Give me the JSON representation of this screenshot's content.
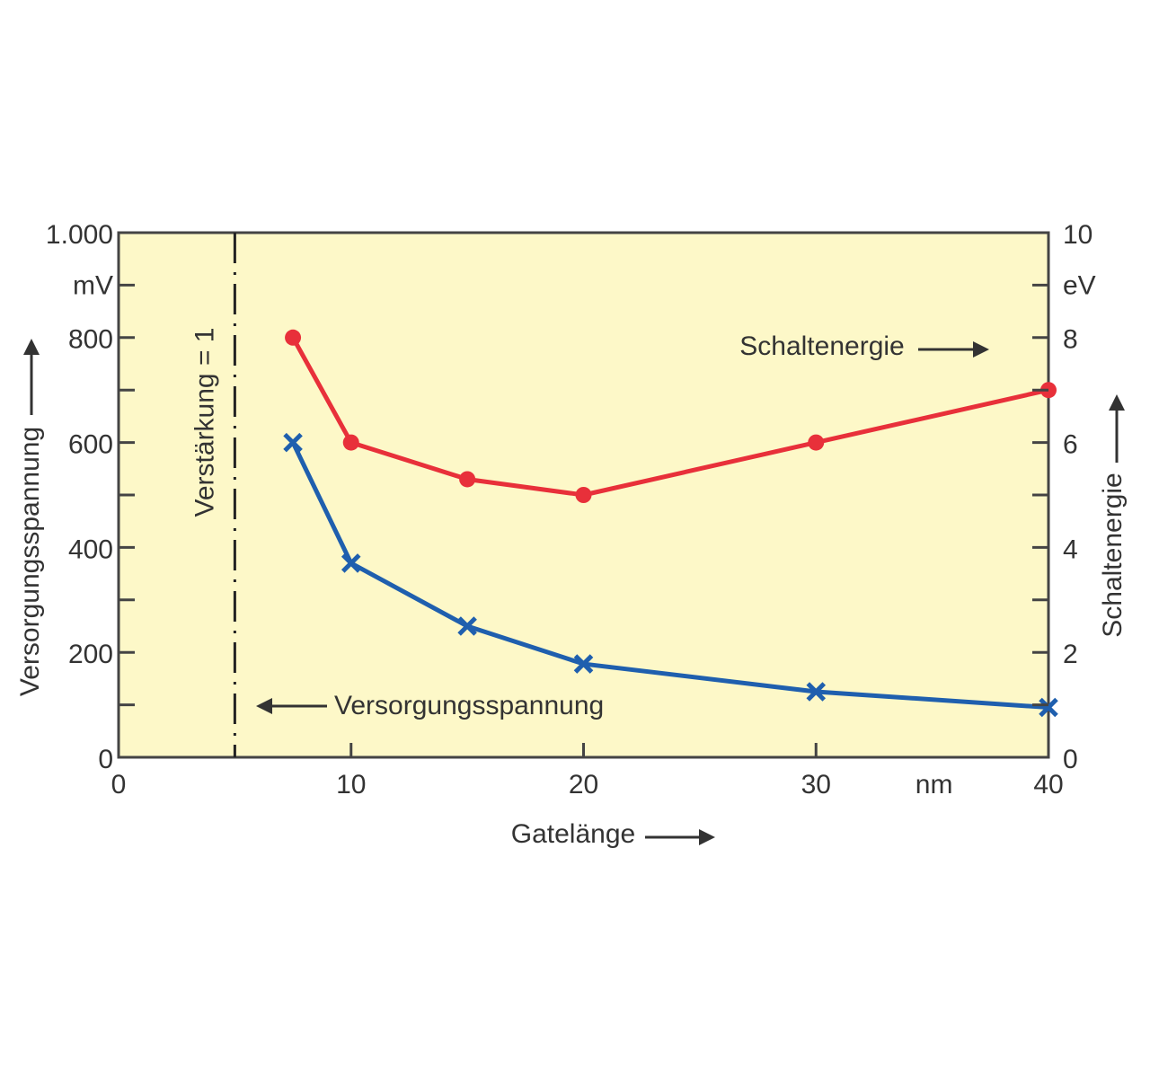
{
  "chart_data": {
    "type": "line",
    "x_label": "Gatelänge",
    "y_label": "Versorgungsspannung",
    "y2_label": "Schaltenergie",
    "x_unit": "nm",
    "y_unit": "mV",
    "y2_unit": "eV",
    "xlim": [
      0,
      40
    ],
    "xticks": [
      0,
      10,
      20,
      30,
      40
    ],
    "ylim": [
      0,
      1000
    ],
    "yticks": [
      0,
      200,
      400,
      600,
      800,
      {
        "value": 1000,
        "label": "1.000"
      }
    ],
    "y_minor_ticks": [
      100,
      300,
      500,
      700,
      900
    ],
    "y2lim": [
      0,
      10
    ],
    "y2ticks": [
      0,
      2,
      4,
      6,
      8,
      10
    ],
    "y2_minor_ticks": [
      1,
      3,
      5,
      7,
      9
    ],
    "annotations": [
      {
        "text": "Verstärkung = 1",
        "x": 5
      }
    ],
    "series": [
      {
        "name": "Schaltenergie",
        "color": "#e8303a",
        "axis": "y2",
        "marker": "circle",
        "x": [
          7.5,
          10,
          15,
          20,
          30,
          40
        ],
        "values": [
          8,
          6,
          5.3,
          5,
          6,
          7
        ]
      },
      {
        "name": "Versorgungsspannung",
        "color": "#1f5fae",
        "marker": "x",
        "x": [
          7.5,
          10,
          15,
          20,
          30,
          40
        ],
        "values": [
          600,
          370,
          250,
          178,
          125,
          95
        ]
      }
    ]
  }
}
